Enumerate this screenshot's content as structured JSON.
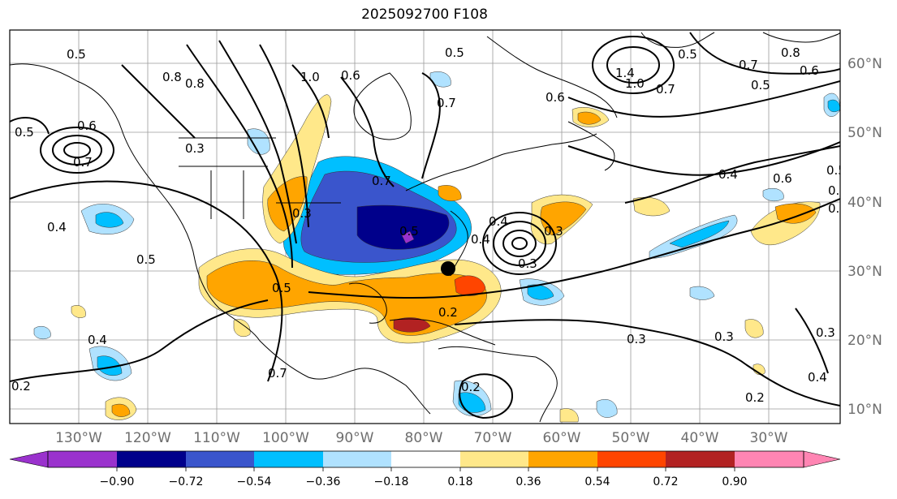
{
  "title": "2025092700 F108",
  "longitude_labels": [
    "130°W",
    "120°W",
    "110°W",
    "100°W",
    "90°W",
    "80°W",
    "70°W",
    "60°W",
    "50°W",
    "40°W",
    "30°W"
  ],
  "latitude_labels": [
    "60°N",
    "50°N",
    "40°N",
    "30°N",
    "20°N",
    "10°N"
  ],
  "colorbar": {
    "labels": [
      "−0.90",
      "−0.72",
      "−0.54",
      "−0.36",
      "−0.18",
      "0.18",
      "0.36",
      "0.54",
      "0.72",
      "0.90"
    ],
    "colors": [
      "#9a32cd",
      "#00008b",
      "#3a55cc",
      "#00bfff",
      "#b0e2ff",
      "#ffffff",
      "#ffe88a",
      "#ffa500",
      "#ff4500",
      "#b22222",
      "#ff85b3"
    ]
  },
  "contour_labels": [
    "0.5",
    "1.0",
    "0.8",
    "0.6",
    "0.5",
    "0.7",
    "1.4",
    "1.0",
    "0.5",
    "0.8",
    "0.7",
    "0.6",
    "0.5",
    "0.7",
    "0.5",
    "0.6",
    "0.7",
    "0.3",
    "0.6",
    "0.4",
    "0.6",
    "0.5",
    "0.5",
    "0.4",
    "0.5",
    "0.3",
    "0.4",
    "0.7",
    "0.2",
    "0.4",
    "0.3",
    "0.3",
    "0.3",
    "0.2",
    "0.2",
    "0.4",
    "0.4",
    "0.3",
    "0.6",
    "0.5",
    "0.3",
    "0.2",
    "0.8",
    "0.4",
    "0.7"
  ],
  "storm_marker": "black-dot"
}
